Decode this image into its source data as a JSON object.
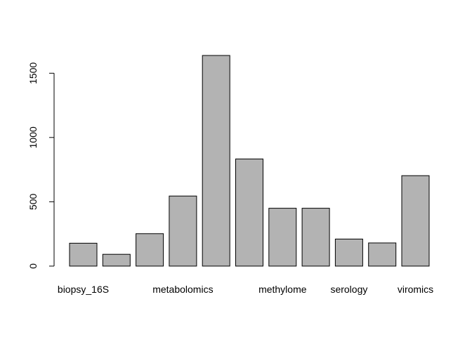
{
  "chart_data": {
    "type": "bar",
    "categories": [
      "biopsy_16S",
      "",
      "",
      "metabolomics",
      "",
      "",
      "methylome",
      "",
      "serology",
      "",
      "viromics"
    ],
    "values": [
      178,
      92,
      252,
      545,
      1638,
      833,
      450,
      450,
      210,
      180,
      703
    ],
    "yticks": [
      0,
      500,
      1000,
      1500
    ],
    "ylim": [
      0,
      1638
    ],
    "title": "",
    "xlabel": "",
    "ylabel": "",
    "bar_color": "#b3b3b3",
    "grid": false
  }
}
